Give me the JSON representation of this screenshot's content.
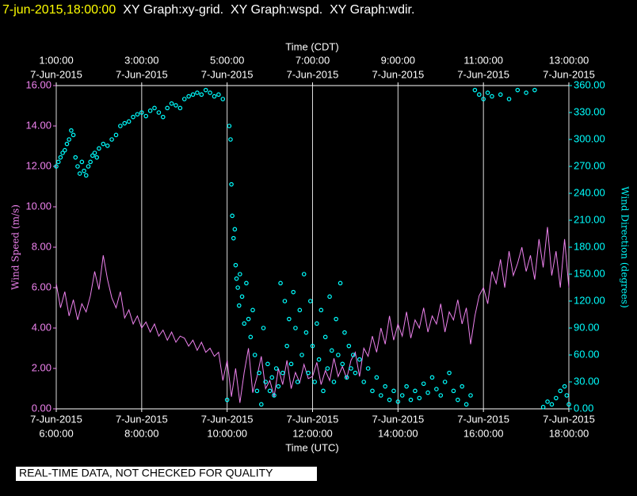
{
  "chart_data": {
    "type": "line",
    "timestamp": "7-jun-2015,18:00:00",
    "title": "XY Graph:xy-grid.  XY Graph:wspd.  XY Graph:wdir.",
    "xlabel": "Time (UTC)",
    "x2label": "Time (CDT)",
    "ylabel": "Wind Speed (m/s)",
    "y2label": "Wind Direction (degrees)",
    "note": "REAL-TIME DATA, NOT CHECKED FOR QUALITY",
    "grid": true,
    "xlim": [
      6,
      18
    ],
    "xticks": [
      {
        "value": 6,
        "label": [
          "7-Jun-2015",
          "6:00:00"
        ]
      },
      {
        "value": 8,
        "label": [
          "7-Jun-2015",
          "8:00:00"
        ]
      },
      {
        "value": 10,
        "label": [
          "7-Jun-2015",
          "10:00:00"
        ]
      },
      {
        "value": 12,
        "label": [
          "7-Jun-2015",
          "12:00:00"
        ]
      },
      {
        "value": 14,
        "label": [
          "7-Jun-2015",
          "14:00:00"
        ]
      },
      {
        "value": 16,
        "label": [
          "7-Jun-2015",
          "16:00:00"
        ]
      },
      {
        "value": 18,
        "label": [
          "7-Jun-2015",
          "18:00:00"
        ]
      }
    ],
    "x2ticks": [
      {
        "value": 6,
        "label": [
          "1:00:00",
          "7-Jun-2015"
        ]
      },
      {
        "value": 8,
        "label": [
          "3:00:00",
          "7-Jun-2015"
        ]
      },
      {
        "value": 10,
        "label": [
          "5:00:00",
          "7-Jun-2015"
        ]
      },
      {
        "value": 12,
        "label": [
          "7:00:00",
          "7-Jun-2015"
        ]
      },
      {
        "value": 14,
        "label": [
          "9:00:00",
          "7-Jun-2015"
        ]
      },
      {
        "value": 16,
        "label": [
          "11:00:00",
          "7-Jun-2015"
        ]
      },
      {
        "value": 18,
        "label": [
          "13:00:00",
          "7-Jun-2015"
        ]
      }
    ],
    "ylim": [
      0,
      16
    ],
    "yticks": [
      {
        "value": 0,
        "label": "0.00"
      },
      {
        "value": 2,
        "label": "2.00"
      },
      {
        "value": 4,
        "label": "4.00"
      },
      {
        "value": 6,
        "label": "6.00"
      },
      {
        "value": 8,
        "label": "8.00"
      },
      {
        "value": 10,
        "label": "10.00"
      },
      {
        "value": 12,
        "label": "12.00"
      },
      {
        "value": 14,
        "label": "14.00"
      },
      {
        "value": 16,
        "label": "16.00"
      }
    ],
    "y2lim": [
      0,
      360
    ],
    "y2ticks": [
      {
        "value": 0,
        "label": "0.00"
      },
      {
        "value": 30,
        "label": "30.00"
      },
      {
        "value": 60,
        "label": "60.00"
      },
      {
        "value": 90,
        "label": "90.00"
      },
      {
        "value": 120,
        "label": "120.00"
      },
      {
        "value": 150,
        "label": "150.00"
      },
      {
        "value": 180,
        "label": "180.00"
      },
      {
        "value": 210,
        "label": "210.00"
      },
      {
        "value": 240,
        "label": "240.00"
      },
      {
        "value": 270,
        "label": "270.00"
      },
      {
        "value": 300,
        "label": "300.00"
      },
      {
        "value": 330,
        "label": "330.00"
      },
      {
        "value": 360,
        "label": "360.00"
      }
    ],
    "series": [
      {
        "type": "line",
        "color": "#ee82ee",
        "x": [
          6.0,
          6.1,
          6.2,
          6.3,
          6.4,
          6.5,
          6.6,
          6.7,
          6.8,
          6.9,
          7.0,
          7.1,
          7.2,
          7.3,
          7.4,
          7.5,
          7.6,
          7.7,
          7.8,
          7.9,
          8.0,
          8.1,
          8.2,
          8.3,
          8.4,
          8.5,
          8.6,
          8.7,
          8.8,
          8.9,
          9.0,
          9.1,
          9.2,
          9.3,
          9.4,
          9.5,
          9.6,
          9.7,
          9.8,
          9.9,
          10.0,
          10.1,
          10.2,
          10.3,
          10.4,
          10.5,
          10.6,
          10.7,
          10.8,
          10.9,
          11.0,
          11.1,
          11.2,
          11.3,
          11.4,
          11.5,
          11.6,
          11.7,
          11.8,
          11.9,
          12.0,
          12.1,
          12.2,
          12.3,
          12.4,
          12.5,
          12.6,
          12.7,
          12.8,
          12.9,
          13.0,
          13.1,
          13.2,
          13.3,
          13.4,
          13.5,
          13.6,
          13.7,
          13.8,
          13.9,
          14.0,
          14.1,
          14.2,
          14.3,
          14.4,
          14.5,
          14.6,
          14.7,
          14.8,
          14.9,
          15.0,
          15.1,
          15.2,
          15.3,
          15.4,
          15.5,
          15.6,
          15.7,
          15.8,
          15.9,
          16.0,
          16.1,
          16.2,
          16.3,
          16.4,
          16.5,
          16.6,
          16.7,
          16.8,
          16.9,
          17.0,
          17.1,
          17.2,
          17.3,
          17.4,
          17.5,
          17.6,
          17.7,
          17.8,
          17.9,
          18.0
        ],
        "values": [
          6.2,
          5.0,
          5.8,
          4.6,
          5.4,
          4.4,
          5.2,
          4.8,
          5.6,
          6.8,
          5.9,
          7.6,
          6.4,
          5.5,
          5.0,
          5.8,
          4.5,
          4.9,
          4.2,
          4.6,
          4.0,
          4.3,
          3.8,
          4.2,
          3.6,
          3.9,
          3.4,
          3.8,
          3.3,
          3.6,
          3.5,
          3.1,
          3.4,
          2.9,
          3.3,
          2.8,
          3.0,
          2.6,
          2.8,
          1.4,
          2.4,
          0.6,
          2.0,
          0.3,
          1.8,
          3.0,
          0.8,
          1.6,
          2.6,
          1.0,
          1.4,
          0.6,
          2.0,
          1.2,
          2.4,
          1.0,
          1.8,
          1.3,
          2.2,
          1.5,
          1.6,
          2.3,
          1.2,
          1.9,
          1.4,
          2.5,
          1.6,
          2.1,
          1.5,
          2.4,
          2.8,
          1.6,
          3.0,
          2.6,
          3.6,
          2.8,
          4.0,
          3.2,
          4.6,
          3.4,
          4.2,
          3.6,
          4.8,
          3.5,
          4.4,
          4.0,
          5.0,
          3.8,
          4.6,
          4.2,
          5.2,
          3.8,
          4.8,
          4.4,
          5.4,
          4.2,
          5.0,
          3.2,
          4.6,
          5.6,
          6.0,
          5.2,
          6.8,
          6.2,
          7.4,
          6.0,
          7.8,
          6.6,
          7.2,
          8.0,
          6.8,
          7.6,
          6.4,
          8.4,
          7.0,
          9.0,
          6.6,
          7.8,
          6.0,
          8.4,
          6.0
        ]
      },
      {
        "type": "scatter",
        "color": "#00ffff",
        "axis": "y2",
        "x": [
          6.0,
          6.05,
          6.1,
          6.15,
          6.2,
          6.25,
          6.3,
          6.35,
          6.4,
          6.45,
          6.5,
          6.55,
          6.6,
          6.65,
          6.7,
          6.75,
          6.8,
          6.85,
          6.9,
          6.95,
          7.0,
          7.1,
          7.2,
          7.3,
          7.4,
          7.5,
          7.6,
          7.7,
          7.8,
          7.9,
          8.0,
          8.1,
          8.2,
          8.3,
          8.4,
          8.5,
          8.6,
          8.7,
          8.8,
          8.9,
          9.0,
          9.1,
          9.2,
          9.3,
          9.4,
          9.5,
          9.6,
          9.7,
          9.8,
          9.9,
          10.0,
          10.05,
          10.08,
          10.1,
          10.12,
          10.15,
          10.18,
          10.2,
          10.22,
          10.25,
          10.28,
          10.3,
          10.35,
          10.4,
          10.45,
          10.5,
          10.55,
          10.6,
          10.65,
          10.7,
          10.75,
          10.8,
          10.85,
          10.9,
          10.95,
          11.0,
          11.05,
          11.1,
          11.15,
          11.2,
          11.25,
          11.3,
          11.35,
          11.4,
          11.45,
          11.5,
          11.55,
          11.6,
          11.65,
          11.7,
          11.75,
          11.8,
          11.85,
          11.9,
          11.95,
          12.0,
          12.05,
          12.1,
          12.15,
          12.2,
          12.25,
          12.3,
          12.35,
          12.4,
          12.45,
          12.5,
          12.55,
          12.6,
          12.65,
          12.7,
          12.75,
          12.8,
          12.85,
          12.9,
          12.95,
          13.0,
          13.1,
          13.2,
          13.3,
          13.4,
          13.5,
          13.6,
          13.7,
          13.8,
          13.9,
          14.0,
          14.1,
          14.2,
          14.3,
          14.4,
          14.5,
          14.6,
          14.7,
          14.8,
          14.9,
          15.0,
          15.1,
          15.2,
          15.3,
          15.4,
          15.5,
          15.6,
          15.7,
          15.8,
          15.9,
          16.0,
          16.1,
          16.2,
          16.4,
          16.6,
          16.8,
          17.0,
          17.2,
          17.4,
          17.5,
          17.6,
          17.7,
          17.8,
          17.9,
          17.95,
          18.0
        ],
        "values": [
          270,
          275,
          280,
          285,
          288,
          295,
          300,
          310,
          305,
          280,
          270,
          262,
          275,
          265,
          260,
          270,
          275,
          282,
          285,
          280,
          290,
          295,
          293,
          300,
          305,
          315,
          318,
          320,
          325,
          328,
          330,
          326,
          332,
          335,
          330,
          325,
          335,
          340,
          338,
          335,
          345,
          348,
          350,
          352,
          350,
          355,
          352,
          348,
          350,
          345,
          10,
          315,
          300,
          250,
          215,
          190,
          200,
          160,
          145,
          135,
          115,
          150,
          125,
          95,
          140,
          100,
          80,
          110,
          60,
          20,
          40,
          5,
          90,
          30,
          50,
          20,
          35,
          15,
          45,
          25,
          140,
          40,
          120,
          70,
          100,
          50,
          130,
          90,
          30,
          110,
          60,
          150,
          85,
          40,
          120,
          70,
          30,
          95,
          55,
          110,
          20,
          80,
          45,
          125,
          65,
          30,
          100,
          60,
          140,
          50,
          85,
          35,
          70,
          45,
          60,
          40,
          55,
          30,
          45,
          20,
          35,
          15,
          25,
          10,
          20,
          8,
          15,
          25,
          10,
          20,
          12,
          28,
          18,
          35,
          22,
          15,
          30,
          40,
          20,
          10,
          25,
          5,
          15,
          355,
          350,
          345,
          352,
          348,
          350,
          345,
          355,
          352,
          355,
          2,
          8,
          5,
          12,
          20,
          25,
          15,
          5
        ]
      }
    ]
  }
}
